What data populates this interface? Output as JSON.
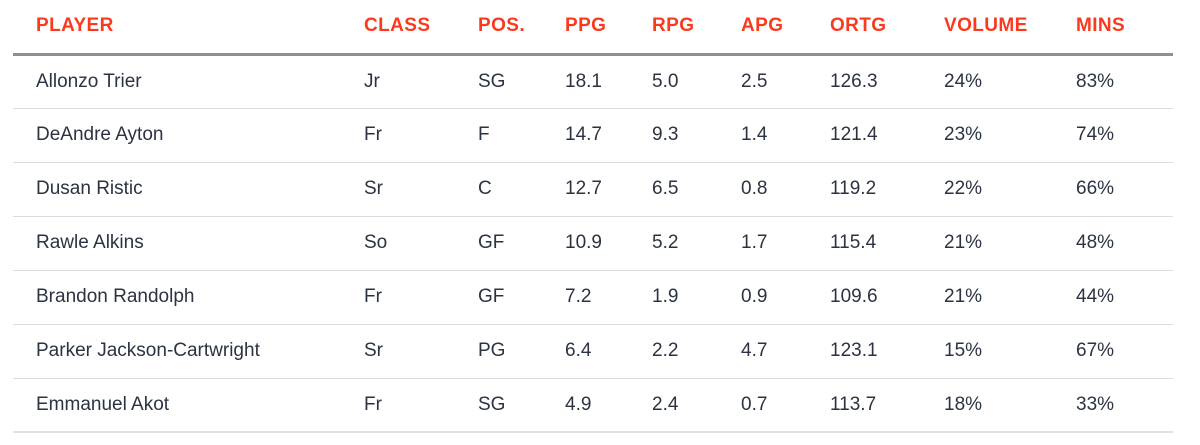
{
  "colors": {
    "header_text": "#fa3a1e",
    "body_text": "#2b3342",
    "header_rule": "#8f8f8f",
    "row_rule": "#dcdcdc",
    "bottom_rule": "#e2e2e2",
    "background": "#ffffff"
  },
  "chart_data": {
    "type": "table",
    "columns": [
      "PLAYER",
      "CLASS",
      "POS.",
      "PPG",
      "RPG",
      "APG",
      "ORTG",
      "VOLUME",
      "MINS"
    ],
    "rows": [
      [
        "Allonzo Trier",
        "Jr",
        "SG",
        "18.1",
        "5.0",
        "2.5",
        "126.3",
        "24%",
        "83%"
      ],
      [
        "DeAndre Ayton",
        "Fr",
        "F",
        "14.7",
        "9.3",
        "1.4",
        "121.4",
        "23%",
        "74%"
      ],
      [
        "Dusan Ristic",
        "Sr",
        "C",
        "12.7",
        "6.5",
        "0.8",
        "119.2",
        "22%",
        "66%"
      ],
      [
        "Rawle Alkins",
        "So",
        "GF",
        "10.9",
        "5.2",
        "1.7",
        "115.4",
        "21%",
        "48%"
      ],
      [
        "Brandon Randolph",
        "Fr",
        "GF",
        "7.2",
        "1.9",
        "0.9",
        "109.6",
        "21%",
        "44%"
      ],
      [
        "Parker Jackson-Cartwright",
        "Sr",
        "PG",
        "6.4",
        "2.2",
        "4.7",
        "123.1",
        "15%",
        "67%"
      ],
      [
        "Emmanuel Akot",
        "Fr",
        "SG",
        "4.9",
        "2.4",
        "0.7",
        "113.7",
        "18%",
        "33%"
      ]
    ]
  }
}
